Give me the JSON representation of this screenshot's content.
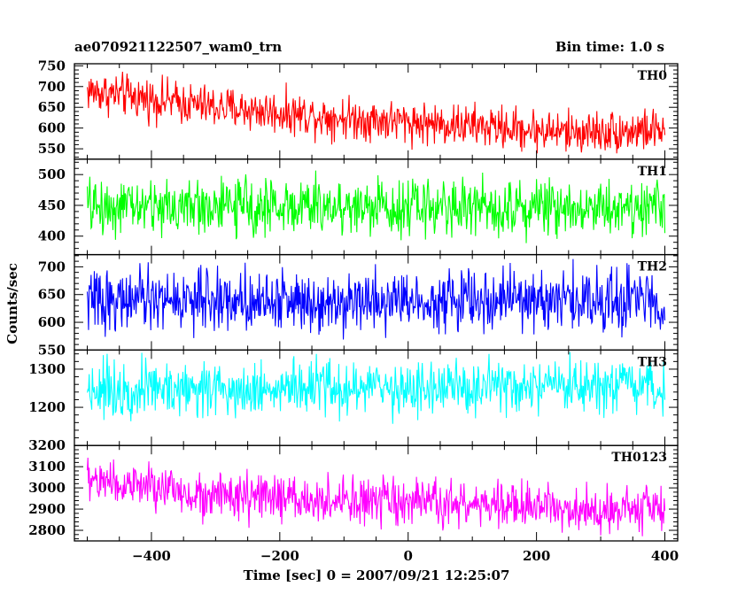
{
  "header": {
    "title": "ae070921122507_wam0_trn",
    "bin_time": "Bin time: 1.0 s"
  },
  "chart_data": {
    "type": "line",
    "xlabel": "Time [sec] 0 = 2007/09/21 12:25:07",
    "ylabel": "Counts/sec",
    "xlim": [
      -520,
      420
    ],
    "x_range_data": [
      -500,
      400
    ],
    "xticks": [
      -400,
      -200,
      0,
      200,
      400
    ],
    "xtick_labels": [
      "−400",
      "−200",
      "0",
      "200",
      "400"
    ],
    "grid": false,
    "panels": [
      {
        "name": "TH0",
        "color": "#ff0000",
        "ylim": [
          525,
          755
        ],
        "yticks": [
          550,
          600,
          650,
          700,
          750
        ],
        "ytick_labels": [
          "550",
          "600",
          "650",
          "700",
          "750"
        ],
        "trend": [
          [
            -500,
            690
          ],
          [
            -300,
            650
          ],
          [
            -100,
            625
          ],
          [
            100,
            605
          ],
          [
            250,
            590
          ],
          [
            400,
            595
          ]
        ],
        "noise": 28
      },
      {
        "name": "TH1",
        "color": "#00ff00",
        "ylim": [
          370,
          525
        ],
        "yticks": [
          400,
          450,
          500
        ],
        "ytick_labels": [
          "400",
          "450",
          "500"
        ],
        "trend": [
          [
            -500,
            448
          ],
          [
            400,
            448
          ]
        ],
        "noise": 25
      },
      {
        "name": "TH2",
        "color": "#0000ff",
        "ylim": [
          550,
          722
        ],
        "yticks": [
          550,
          600,
          650,
          700
        ],
        "ytick_labels": [
          "550",
          "600",
          "650",
          "700"
        ],
        "trend": [
          [
            -500,
            640
          ],
          [
            400,
            640
          ]
        ],
        "noise": 30
      },
      {
        "name": "TH3",
        "color": "#00ffff",
        "ylim": [
          1100,
          1350
        ],
        "yticks": [
          1200,
          1300
        ],
        "ytick_labels": [
          "1200",
          "1300"
        ],
        "trend": [
          [
            -500,
            1250
          ],
          [
            400,
            1248
          ]
        ],
        "noise": 40
      },
      {
        "name": "TH0123",
        "color": "#ff00ff",
        "ylim": [
          2750,
          3200
        ],
        "yticks": [
          2800,
          2900,
          3000,
          3100,
          3200
        ],
        "ytick_labels": [
          "2800",
          "2900",
          "3000",
          "3100",
          "3200"
        ],
        "trend": [
          [
            -500,
            3040
          ],
          [
            -300,
            2960
          ],
          [
            -100,
            2935
          ],
          [
            100,
            2920
          ],
          [
            250,
            2905
          ],
          [
            400,
            2905
          ]
        ],
        "noise": 60
      }
    ]
  }
}
